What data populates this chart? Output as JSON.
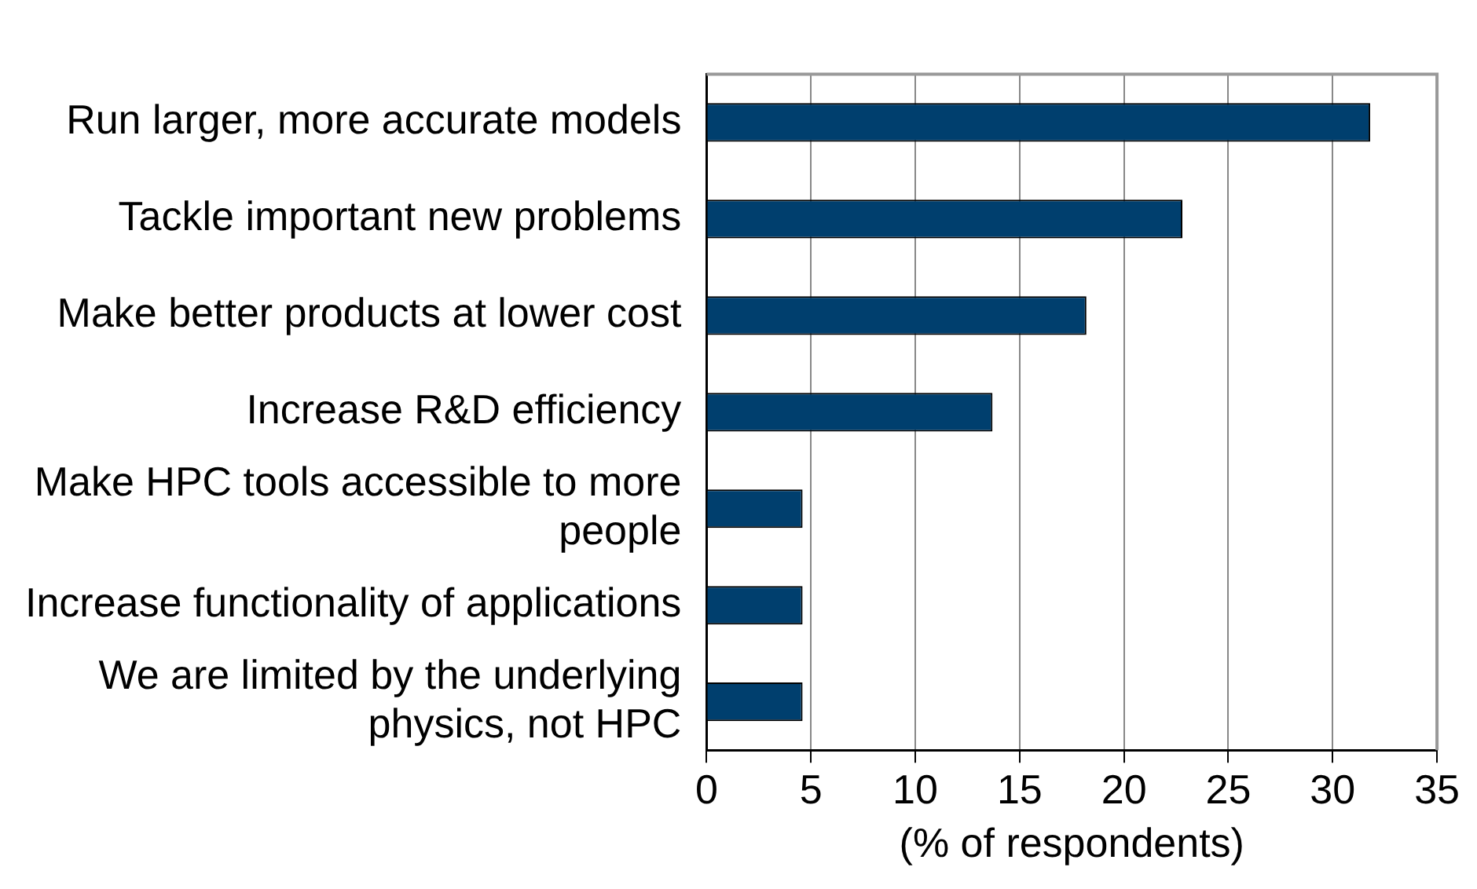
{
  "chart_data": {
    "type": "bar",
    "orientation": "horizontal",
    "xlabel": "(% of respondents)",
    "categories": [
      "Run larger, more accurate models",
      "Tackle important new problems",
      "Make better products at lower cost",
      "Increase R&D efficiency",
      "Make HPC tools accessible to more people",
      "Increase functionality of applications",
      "We are limited by the underlying physics, not HPC"
    ],
    "values": [
      31.8,
      22.8,
      18.2,
      13.7,
      4.6,
      4.6,
      4.6
    ],
    "color": "#003f6e",
    "xlim": [
      0,
      35
    ],
    "xticks": [
      0,
      5,
      10,
      15,
      20,
      25,
      30,
      35
    ],
    "grid": "x",
    "legend": false
  }
}
